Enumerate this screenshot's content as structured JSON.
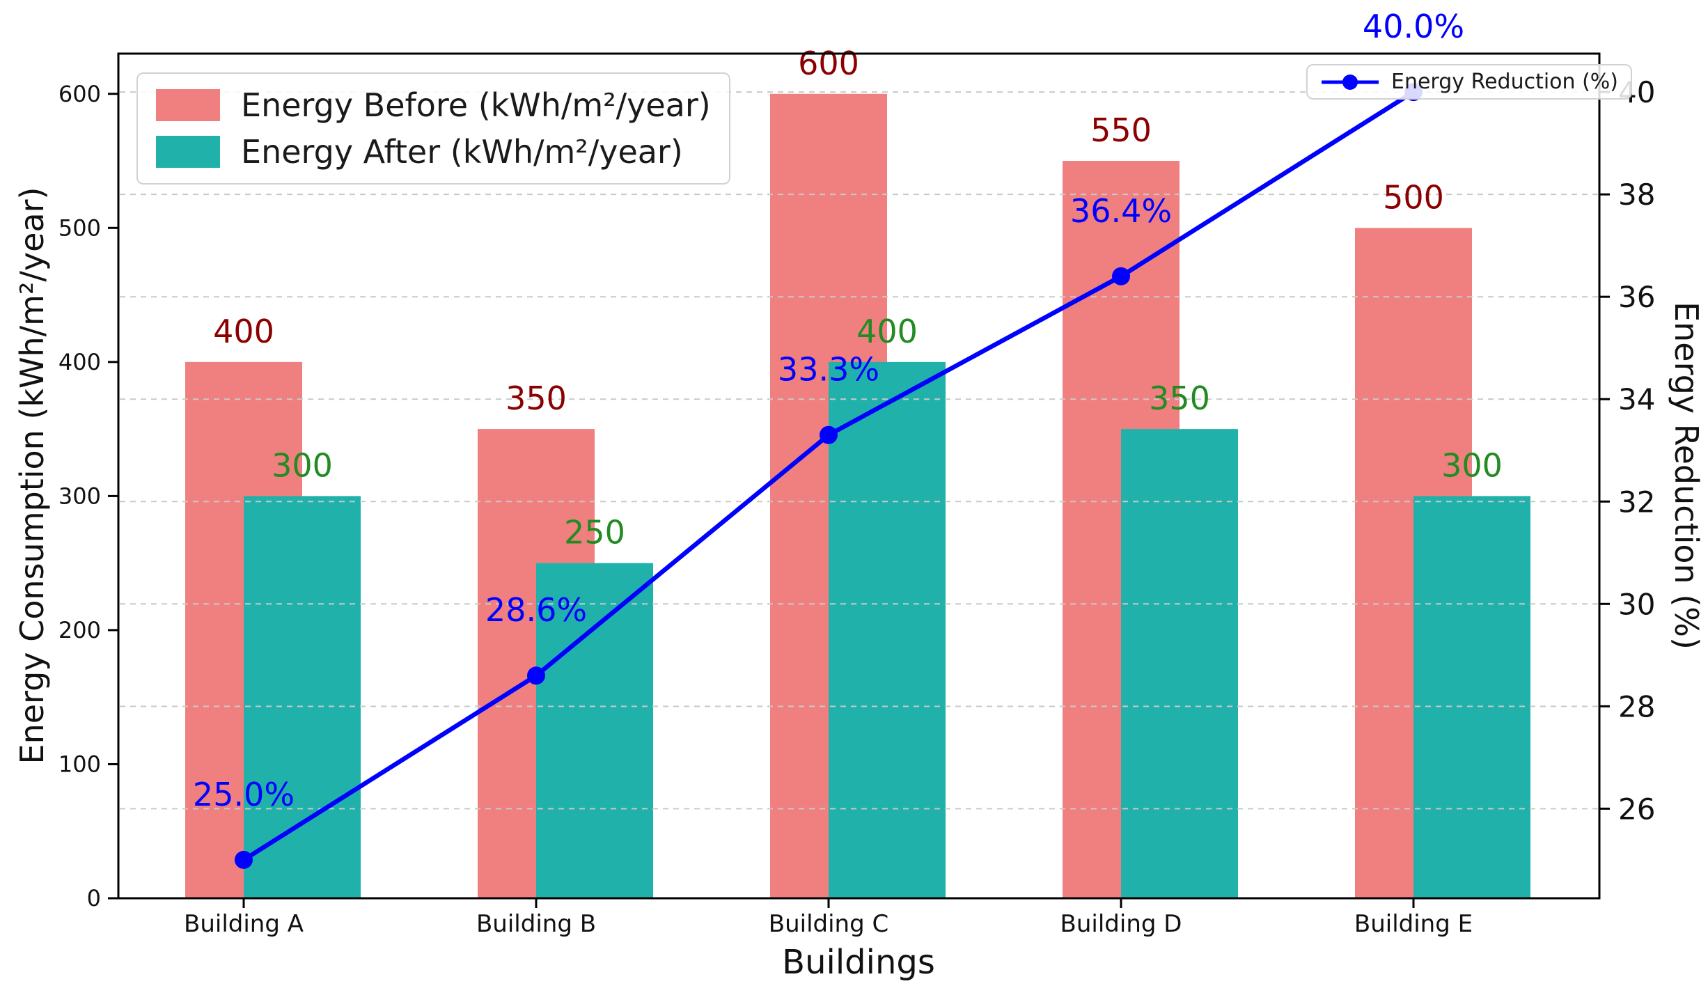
{
  "chart_data": {
    "type": "bar+line",
    "categories": [
      "Building A",
      "Building B",
      "Building C",
      "Building D",
      "Building E"
    ],
    "series": [
      {
        "name": "Energy Before (kWh/m²/year)",
        "type": "bar",
        "axis": "left",
        "color": "#F08080",
        "label_color": "#8B0000",
        "values": [
          400,
          350,
          600,
          550,
          500
        ],
        "value_labels": [
          "400",
          "350",
          "600",
          "550",
          "500"
        ]
      },
      {
        "name": "Energy After (kWh/m²/year)",
        "type": "bar",
        "axis": "left",
        "color": "#20B2AA",
        "label_color": "#228B22",
        "values": [
          300,
          250,
          400,
          350,
          300
        ],
        "value_labels": [
          "300",
          "250",
          "400",
          "350",
          "300"
        ]
      },
      {
        "name": "Energy Reduction (%)",
        "type": "line",
        "axis": "right",
        "color": "#0000FF",
        "label_color": "#0000FF",
        "values": [
          25.0,
          28.6,
          33.3,
          36.4,
          40.0
        ],
        "value_labels": [
          "25.0%",
          "28.6%",
          "33.3%",
          "36.4%",
          "40.0%"
        ]
      }
    ],
    "xlabel": "Buildings",
    "ylabel_left": "Energy Consumption (kWh/m²/year)",
    "ylabel_right": "Energy Reduction (%)",
    "yticks_left": [
      0,
      100,
      200,
      300,
      400,
      500,
      600
    ],
    "yticks_right": [
      26,
      28,
      30,
      32,
      34,
      36,
      38,
      40
    ],
    "ylim_left": [
      0,
      630
    ],
    "ylim_right": [
      24.25,
      40.75
    ],
    "grid": {
      "on": true,
      "axis": "right",
      "style": "dashed",
      "color": "#c9c9c9"
    },
    "legend_bars_position": "upper left",
    "legend_line_position": "upper right",
    "background": "#ffffff",
    "spine_color": "#000000"
  }
}
